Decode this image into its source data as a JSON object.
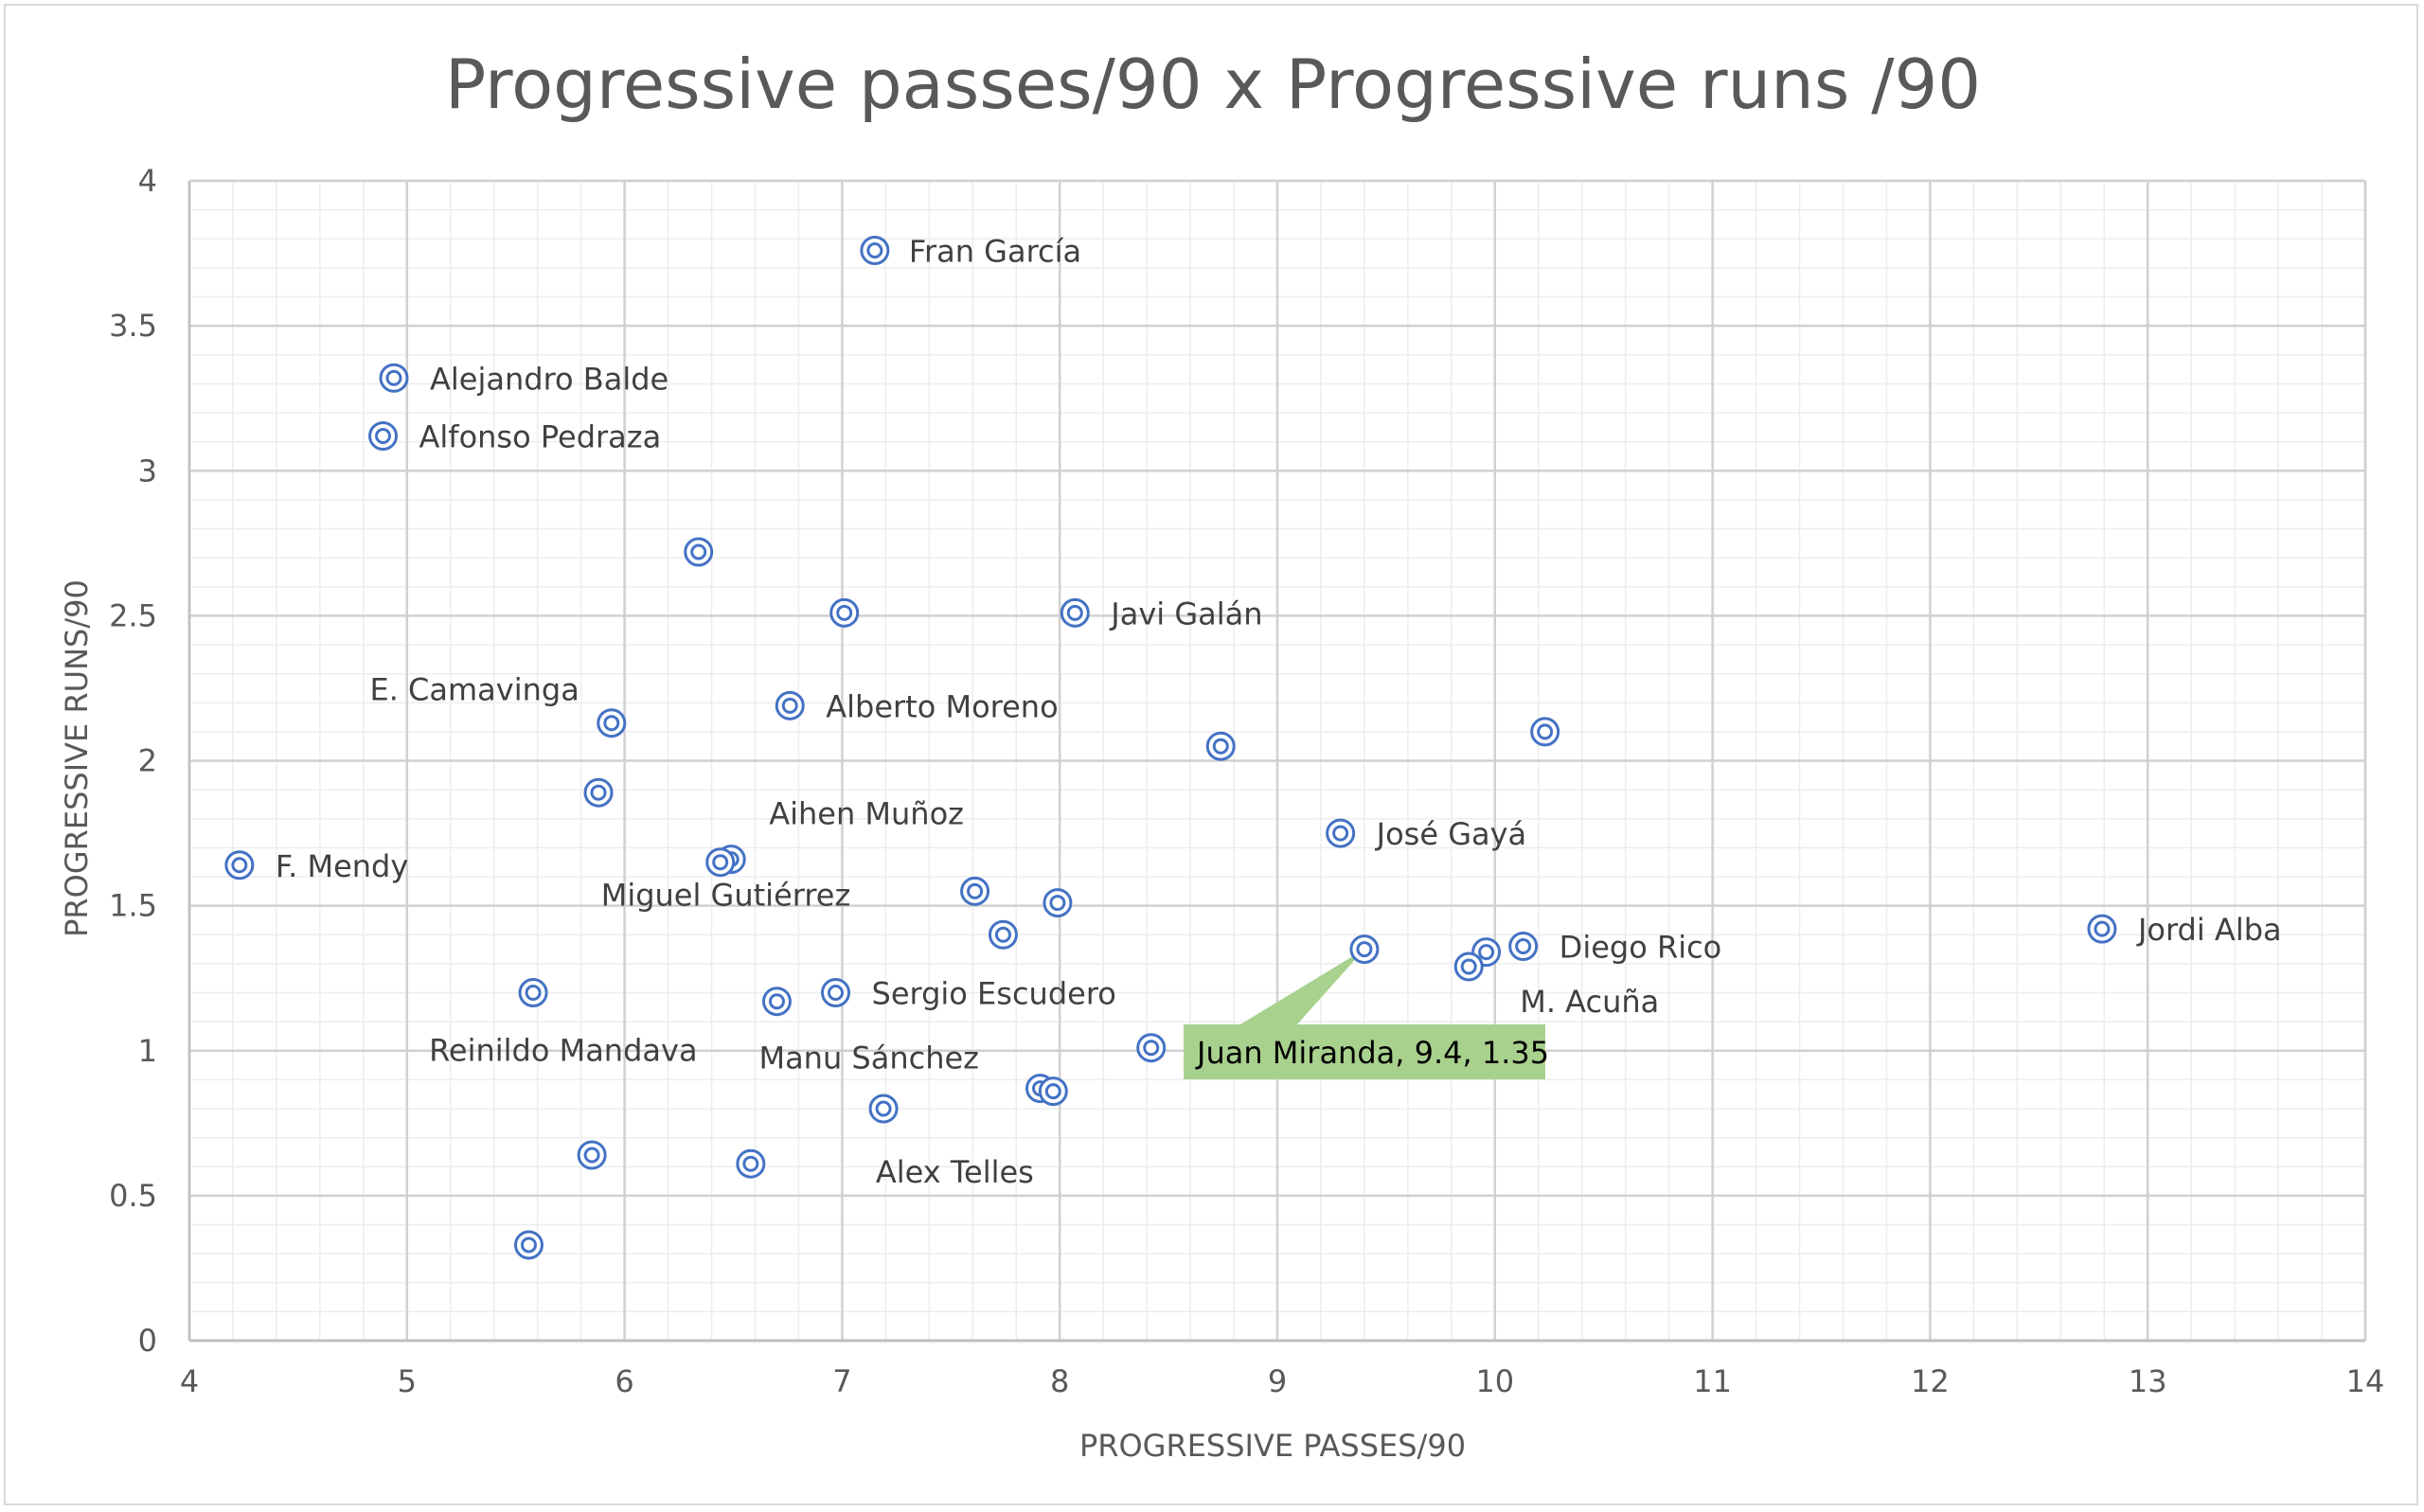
{
  "chart_data": {
    "type": "scatter",
    "title": "Progressive passes/90 x Progressive runs /90",
    "xlabel": "PROGRESSIVE PASSES/90",
    "ylabel": "PROGRESSIVE RUNS/90",
    "xlim": [
      4,
      14
    ],
    "ylim": [
      0,
      4
    ],
    "x_ticks": [
      "4",
      "5",
      "6",
      "7",
      "8",
      "9",
      "10",
      "11",
      "12",
      "13",
      "14"
    ],
    "y_ticks": [
      "0",
      "0.5",
      "1",
      "1.5",
      "2",
      "2.5",
      "3",
      "3.5",
      "4"
    ],
    "grid": true,
    "legend": "none",
    "marker_color": "#4472c4",
    "points": [
      {
        "x": 7.15,
        "y": 3.76,
        "label": "Fran García"
      },
      {
        "x": 4.94,
        "y": 3.32,
        "label": "Alejandro Balde"
      },
      {
        "x": 4.89,
        "y": 3.12,
        "label": "Alfonso Pedraza"
      },
      {
        "x": 6.34,
        "y": 2.72,
        "label": ""
      },
      {
        "x": 7.01,
        "y": 2.51,
        "label": ""
      },
      {
        "x": 8.07,
        "y": 2.51,
        "label": "Javi Galán"
      },
      {
        "x": 5.94,
        "y": 2.13,
        "label": "E. Camavinga"
      },
      {
        "x": 6.76,
        "y": 2.19,
        "label": "Alberto Moreno"
      },
      {
        "x": 8.74,
        "y": 2.05,
        "label": ""
      },
      {
        "x": 10.23,
        "y": 2.1,
        "label": ""
      },
      {
        "x": 5.88,
        "y": 1.89,
        "label": ""
      },
      {
        "x": 4.23,
        "y": 1.64,
        "label": "F. Mendy"
      },
      {
        "x": 6.49,
        "y": 1.66,
        "label": "Aihen Muñoz"
      },
      {
        "x": 6.44,
        "y": 1.65,
        "label": "Miguel Gutiérrez"
      },
      {
        "x": 9.29,
        "y": 1.75,
        "label": "José Gayá"
      },
      {
        "x": 7.61,
        "y": 1.55,
        "label": ""
      },
      {
        "x": 7.99,
        "y": 1.51,
        "label": ""
      },
      {
        "x": 7.74,
        "y": 1.4,
        "label": ""
      },
      {
        "x": 12.79,
        "y": 1.42,
        "label": "Jordi Alba"
      },
      {
        "x": 9.4,
        "y": 1.35,
        "label": ""
      },
      {
        "x": 9.96,
        "y": 1.34,
        "label": ""
      },
      {
        "x": 10.13,
        "y": 1.36,
        "label": "Diego Rico"
      },
      {
        "x": 9.88,
        "y": 1.29,
        "label": "M. Acuña"
      },
      {
        "x": 5.58,
        "y": 1.2,
        "label": "Reinildo Mandava"
      },
      {
        "x": 6.7,
        "y": 1.17,
        "label": "Manu Sánchez"
      },
      {
        "x": 6.97,
        "y": 1.2,
        "label": "Sergio Escudero"
      },
      {
        "x": 8.42,
        "y": 1.01,
        "label": ""
      },
      {
        "x": 7.91,
        "y": 0.87,
        "label": ""
      },
      {
        "x": 7.97,
        "y": 0.86,
        "label": ""
      },
      {
        "x": 7.19,
        "y": 0.8,
        "label": ""
      },
      {
        "x": 5.85,
        "y": 0.64,
        "label": ""
      },
      {
        "x": 6.58,
        "y": 0.61,
        "label": "Alex Telles"
      },
      {
        "x": 5.56,
        "y": 0.33,
        "label": ""
      }
    ],
    "callout": {
      "text": "Juan Miranda, 9.4, 1.35",
      "x": 9.4,
      "y": 1.35,
      "color": "#a9d18e"
    }
  }
}
